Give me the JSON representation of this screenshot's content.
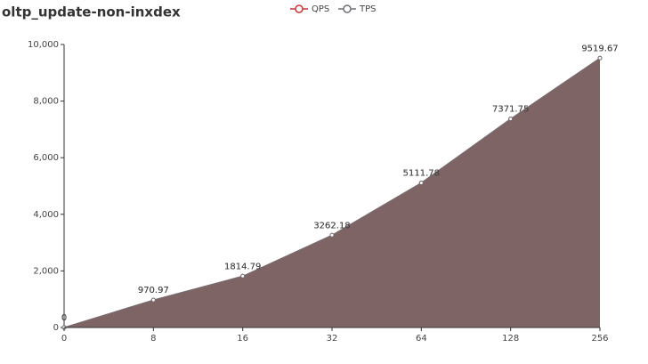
{
  "chart_data": {
    "type": "area",
    "title": "oltp_update-non-inxdex",
    "categories": [
      "0",
      "8",
      "16",
      "32",
      "64",
      "128",
      "256"
    ],
    "series": [
      {
        "name": "QPS",
        "color": "#c23531",
        "values": [
          0,
          970.97,
          1814.79,
          3262.18,
          5111.78,
          7371.75,
          9519.67
        ]
      },
      {
        "name": "TPS",
        "color": "#6e7074",
        "values": [
          0,
          970.97,
          1814.79,
          3262.18,
          5111.78,
          7371.75,
          9519.67
        ]
      }
    ],
    "ylim": [
      0,
      10000
    ],
    "yticks": [
      0,
      {
        "value": 2000,
        "label": "2,000"
      },
      {
        "value": 4000,
        "label": "4,000"
      },
      {
        "value": 6000,
        "label": "6,000"
      },
      {
        "value": 8000,
        "label": "8,000"
      },
      {
        "value": 10000,
        "label": "10,000"
      }
    ],
    "legend": "top"
  }
}
